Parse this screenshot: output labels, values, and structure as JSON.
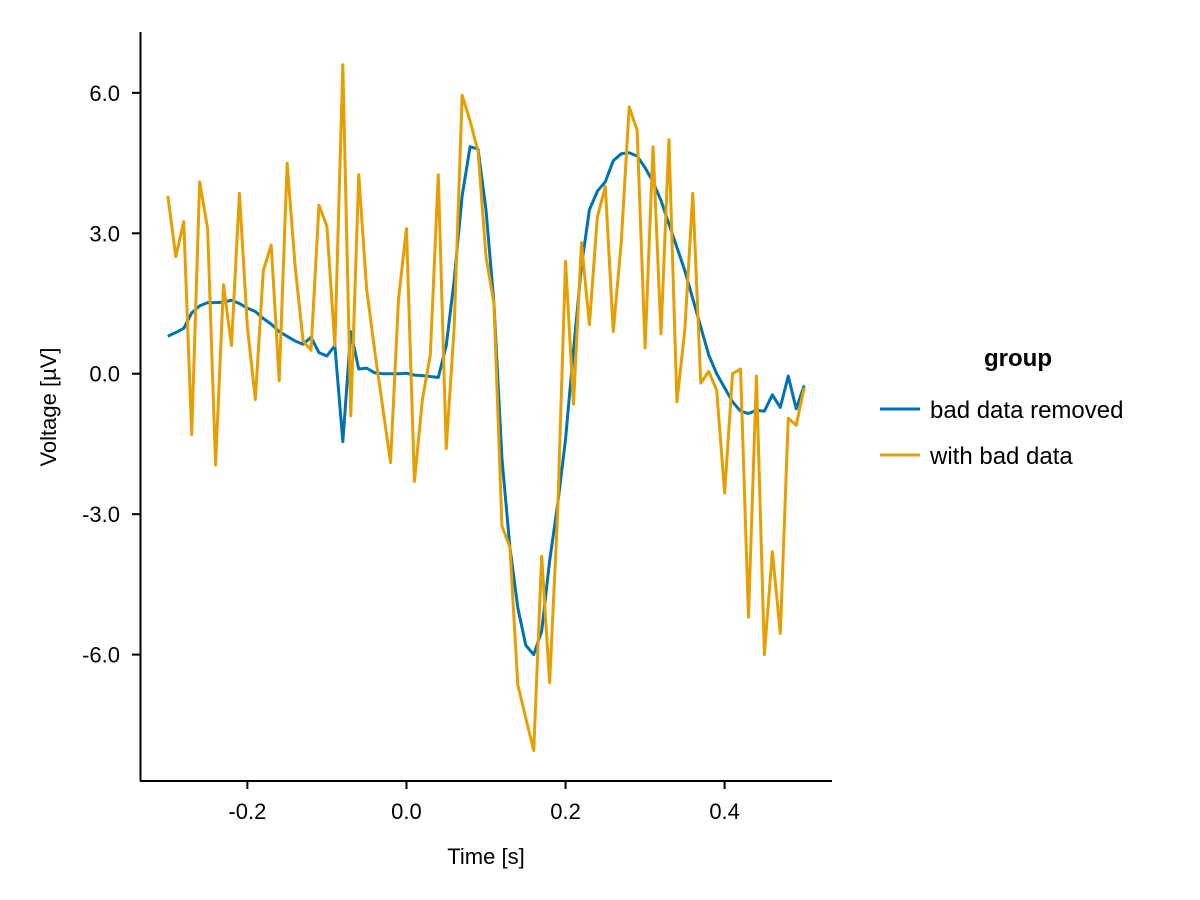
{
  "chart_data": {
    "type": "line",
    "title": "",
    "xlabel": "Time [s]",
    "ylabel": "Voltage [µV]",
    "xlim": [
      -0.335,
      0.535
    ],
    "ylim": [
      -8.7,
      7.3
    ],
    "xticks": [
      -0.2,
      0.0,
      0.2,
      0.4
    ],
    "xtick_labels": [
      "-0.2",
      "0.0",
      "0.2",
      "0.4"
    ],
    "yticks": [
      -6.0,
      -3.0,
      0.0,
      3.0,
      6.0
    ],
    "ytick_labels": [
      "-6.0",
      "-3.0",
      "0.0",
      "3.0",
      "6.0"
    ],
    "grid": false,
    "legend": {
      "title": "group",
      "placement": "right"
    },
    "x": [
      -0.3,
      -0.29,
      -0.28,
      -0.27,
      -0.26,
      -0.25,
      -0.24,
      -0.23,
      -0.22,
      -0.21,
      -0.2,
      -0.19,
      -0.18,
      -0.17,
      -0.16,
      -0.15,
      -0.14,
      -0.13,
      -0.12,
      -0.11,
      -0.1,
      -0.09,
      -0.08,
      -0.07,
      -0.06,
      -0.05,
      -0.04,
      -0.03,
      -0.02,
      -0.01,
      0.0,
      0.01,
      0.02,
      0.03,
      0.04,
      0.05,
      0.06,
      0.07,
      0.08,
      0.09,
      0.1,
      0.11,
      0.12,
      0.13,
      0.14,
      0.15,
      0.16,
      0.17,
      0.18,
      0.19,
      0.2,
      0.21,
      0.22,
      0.23,
      0.24,
      0.25,
      0.26,
      0.27,
      0.28,
      0.29,
      0.3,
      0.31,
      0.32,
      0.33,
      0.34,
      0.35,
      0.36,
      0.37,
      0.38,
      0.39,
      0.4,
      0.41,
      0.42,
      0.43,
      0.44,
      0.45,
      0.46,
      0.47,
      0.48,
      0.49,
      0.5
    ],
    "series": [
      {
        "name": "bad data removed",
        "color": "#0072B2",
        "values": [
          0.8,
          0.88,
          0.97,
          1.3,
          1.45,
          1.52,
          1.52,
          1.53,
          1.57,
          1.5,
          1.4,
          1.33,
          1.18,
          1.06,
          0.9,
          0.8,
          0.7,
          0.63,
          0.78,
          0.45,
          0.38,
          0.6,
          -1.45,
          0.9,
          0.1,
          0.12,
          0.02,
          0.0,
          0.0,
          0.0,
          0.01,
          -0.03,
          -0.04,
          -0.06,
          -0.08,
          0.6,
          2.0,
          3.8,
          4.85,
          4.8,
          3.5,
          1.5,
          -1.8,
          -3.7,
          -5.0,
          -5.8,
          -6.0,
          -5.5,
          -4.0,
          -2.8,
          -1.4,
          0.5,
          2.3,
          3.5,
          3.9,
          4.1,
          4.55,
          4.7,
          4.72,
          4.65,
          4.4,
          4.1,
          3.7,
          3.2,
          2.7,
          2.2,
          1.6,
          1.0,
          0.4,
          0.0,
          -0.3,
          -0.6,
          -0.8,
          -0.85,
          -0.78,
          -0.8,
          -0.45,
          -0.72,
          -0.05,
          -0.75,
          -0.25
        ]
      },
      {
        "name": "with bad data",
        "color": "#E69F00",
        "values": [
          3.8,
          2.5,
          3.25,
          -1.3,
          4.1,
          3.1,
          -1.95,
          1.9,
          0.6,
          3.85,
          1.0,
          -0.55,
          2.2,
          2.75,
          -0.15,
          4.5,
          2.3,
          0.7,
          0.5,
          3.6,
          3.15,
          0.6,
          6.6,
          -0.9,
          4.25,
          1.8,
          0.5,
          -0.7,
          -1.9,
          1.6,
          3.1,
          -2.3,
          -0.55,
          0.4,
          4.25,
          -1.6,
          1.0,
          5.95,
          5.4,
          4.75,
          2.5,
          1.5,
          -3.25,
          -3.7,
          -6.65,
          -7.35,
          -8.05,
          -3.9,
          -6.6,
          -3.0,
          2.4,
          -0.65,
          2.8,
          1.05,
          3.35,
          4.0,
          0.9,
          2.8,
          5.7,
          5.2,
          0.55,
          4.85,
          0.85,
          5.0,
          -0.6,
          0.95,
          3.85,
          -0.2,
          0.05,
          -0.35,
          -2.55,
          0.0,
          0.1,
          -5.2,
          -0.05,
          -6.0,
          -3.8,
          -5.55,
          -0.95,
          -1.1,
          -0.3
        ]
      }
    ]
  }
}
